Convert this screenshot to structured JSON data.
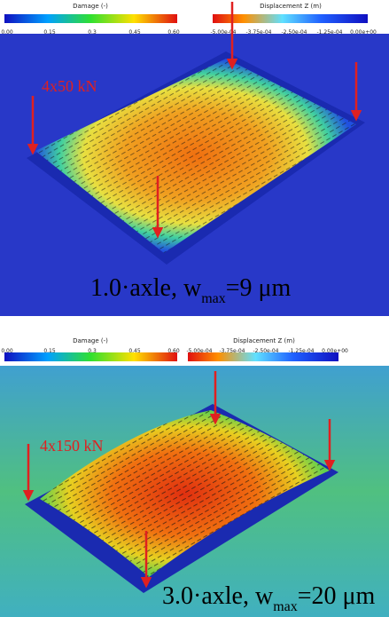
{
  "panels": [
    {
      "damage_bar": {
        "title": "Damage (-)",
        "ticks": [
          "0.00",
          "0.15",
          "0.3",
          "0.45",
          "0.60"
        ]
      },
      "displacement_bar": {
        "title": "Displacement Z (m)",
        "ticks": [
          "-5.00e-04",
          "-3.75e-04",
          "-2.50e-04",
          "-1.25e-04",
          "0.00e+00"
        ]
      },
      "load_label": "4x50 kN",
      "caption": {
        "main": "1.0·axle, w",
        "subscript": "max",
        "rest": "=9 μm"
      }
    },
    {
      "damage_bar": {
        "title": "Damage (-)",
        "ticks": [
          "0.00",
          "0.15",
          "0.3",
          "0.45",
          "0.60"
        ]
      },
      "displacement_bar": {
        "title": "Displacement Z (m)",
        "ticks": [
          "-5.00e-04",
          "-3.75e-04",
          "-2.50e-04",
          "-1.25e-04",
          "0.00e+00"
        ]
      },
      "load_label": "4x150 kN",
      "caption": {
        "main": "3.0·axle, w",
        "subscript": "max",
        "rest": "=20 μm"
      }
    }
  ]
}
